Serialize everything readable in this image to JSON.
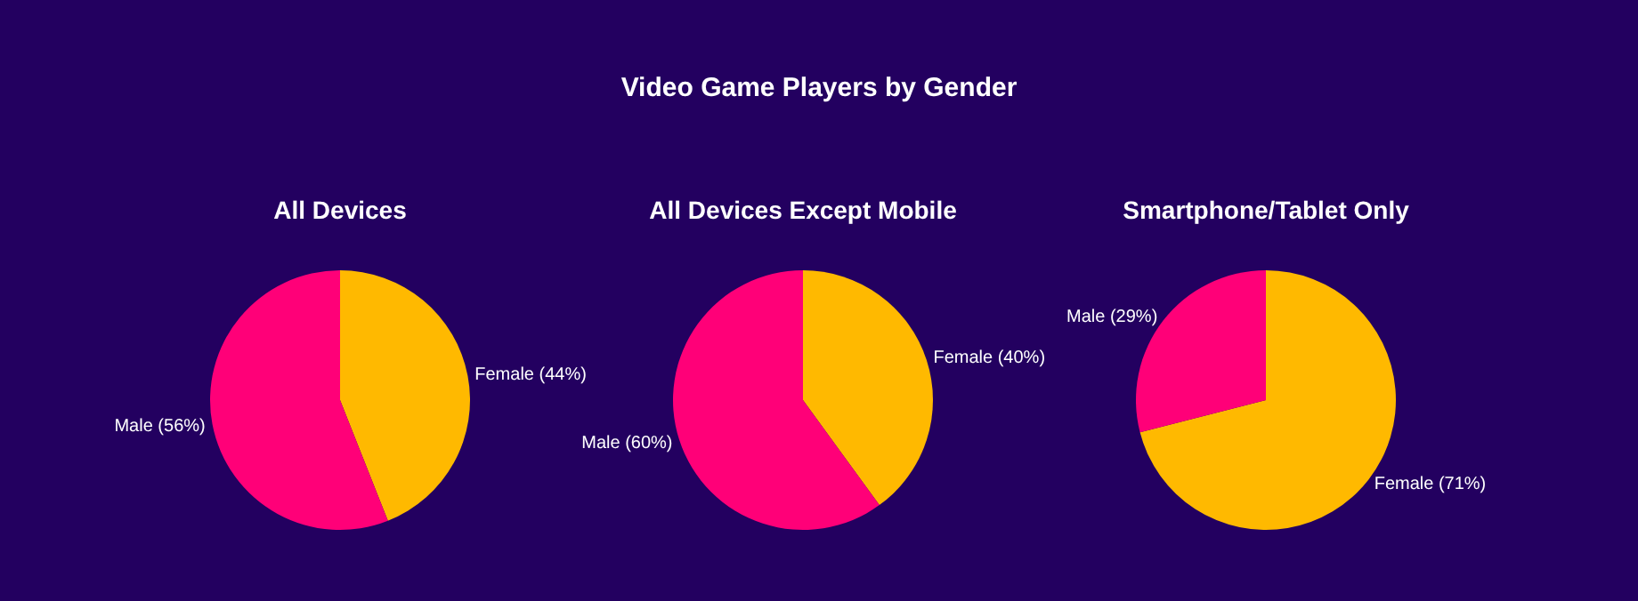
{
  "chart_data": [
    {
      "type": "other",
      "title": "Video Game Players by Gender"
    },
    {
      "type": "pie",
      "title": "All Devices",
      "categories": [
        "Female",
        "Male"
      ],
      "values": [
        44,
        56
      ],
      "colors": [
        "#ffb900",
        "#ff0078"
      ],
      "value_labels": [
        "(44%)",
        "(56%)"
      ]
    },
    {
      "type": "pie",
      "title": "All Devices Except Mobile",
      "categories": [
        "Female",
        "Male"
      ],
      "values": [
        40,
        60
      ],
      "colors": [
        "#ffb900",
        "#ff0078"
      ],
      "value_labels": [
        "(40%)",
        "(60%)"
      ]
    },
    {
      "type": "pie",
      "title": "Smartphone/Tablet Only",
      "categories": [
        "Female",
        "Male"
      ],
      "values": [
        71,
        29
      ],
      "colors": [
        "#ffb900",
        "#ff0078"
      ],
      "value_labels": [
        "(71%)",
        "(29%)"
      ]
    }
  ]
}
